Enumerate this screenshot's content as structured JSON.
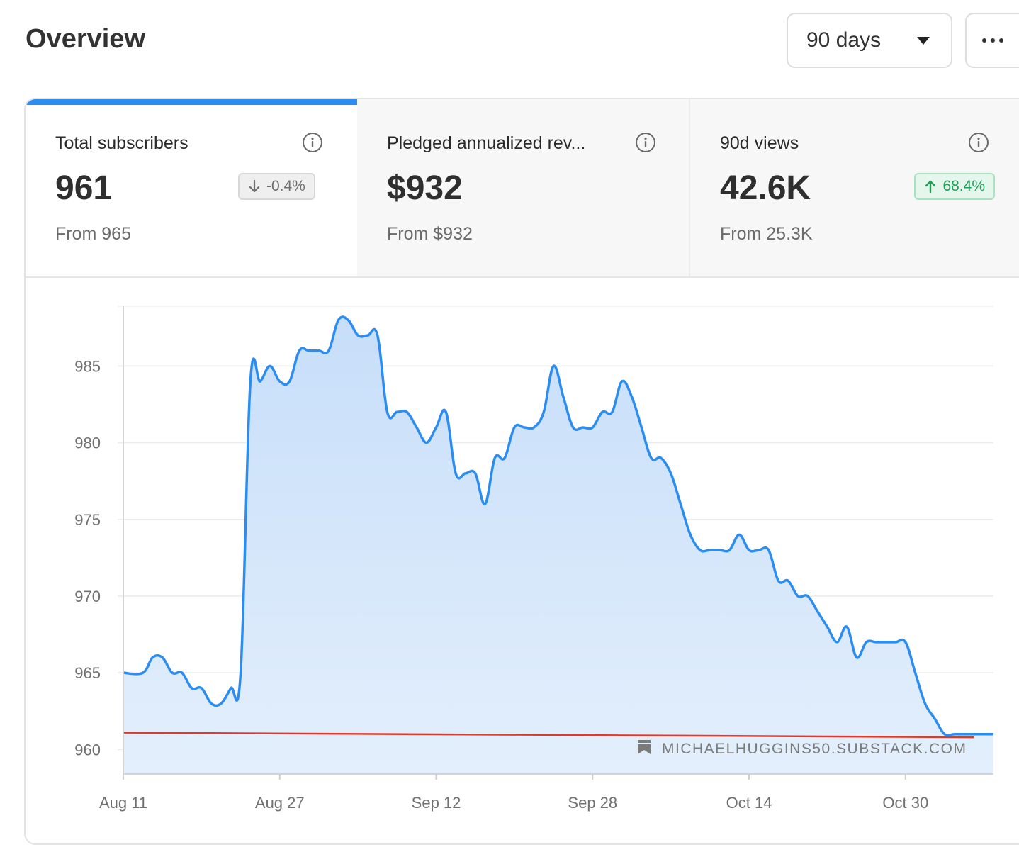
{
  "header": {
    "title": "Overview",
    "range_value": "90 days"
  },
  "stats": [
    {
      "label": "Total subscribers",
      "value": "961",
      "from": "From 965",
      "badge": "-0.4%",
      "trend": "down"
    },
    {
      "label": "Pledged annualized rev...",
      "value": "$932",
      "from": "From $932"
    },
    {
      "label": "90d views",
      "value": "42.6K",
      "from": "From 25.3K",
      "badge": "68.4%",
      "trend": "up"
    }
  ],
  "colors": {
    "accent": "#2b8cf1",
    "line": "#2b8cf1",
    "fill_top": "#c7def9",
    "fill_bottom": "#e3effc",
    "baseline": "#e0392b",
    "up_text": "#1f9e56",
    "down_text": "#6f6f6f"
  },
  "chart_data": {
    "type": "area",
    "title": "",
    "xlabel": "",
    "ylabel": "",
    "ylim": [
      958.4,
      988.9
    ],
    "xlim": [
      0,
      89
    ],
    "yticks": [
      960,
      965,
      970,
      975,
      980,
      985
    ],
    "xticks": [
      {
        "label": "Aug 11",
        "x": 0
      },
      {
        "label": "Aug 27",
        "x": 16
      },
      {
        "label": "Sep 12",
        "x": 32
      },
      {
        "label": "Sep 28",
        "x": 48
      },
      {
        "label": "Oct 14",
        "x": 64
      },
      {
        "label": "Oct 30",
        "x": 80
      }
    ],
    "grid": true,
    "series": [
      {
        "name": "Total subscribers",
        "points": [
          [
            0,
            965
          ],
          [
            2,
            965
          ],
          [
            3,
            966
          ],
          [
            4,
            966
          ],
          [
            5,
            965
          ],
          [
            6,
            965
          ],
          [
            7,
            964
          ],
          [
            8,
            964
          ],
          [
            9,
            963
          ],
          [
            10,
            963
          ],
          [
            11,
            964
          ],
          [
            12,
            965
          ],
          [
            13,
            984
          ],
          [
            14,
            984
          ],
          [
            15,
            985
          ],
          [
            16,
            984
          ],
          [
            17,
            984
          ],
          [
            18,
            986
          ],
          [
            19,
            986
          ],
          [
            20,
            986
          ],
          [
            21,
            986
          ],
          [
            22,
            988
          ],
          [
            23,
            988
          ],
          [
            24,
            987
          ],
          [
            25,
            987
          ],
          [
            26,
            987
          ],
          [
            27,
            982
          ],
          [
            28,
            982
          ],
          [
            29,
            982
          ],
          [
            30,
            981
          ],
          [
            31,
            980
          ],
          [
            32,
            981
          ],
          [
            33,
            982
          ],
          [
            34,
            978
          ],
          [
            35,
            978
          ],
          [
            36,
            978
          ],
          [
            37,
            976
          ],
          [
            38,
            979
          ],
          [
            39,
            979
          ],
          [
            40,
            981
          ],
          [
            41,
            981
          ],
          [
            42,
            981
          ],
          [
            43,
            982
          ],
          [
            44,
            985
          ],
          [
            45,
            983
          ],
          [
            46,
            981
          ],
          [
            47,
            981
          ],
          [
            48,
            981
          ],
          [
            49,
            982
          ],
          [
            50,
            982
          ],
          [
            51,
            984
          ],
          [
            52,
            983
          ],
          [
            53,
            981
          ],
          [
            54,
            979
          ],
          [
            55,
            979
          ],
          [
            56,
            978
          ],
          [
            57,
            976
          ],
          [
            58,
            974
          ],
          [
            59,
            973
          ],
          [
            60,
            973
          ],
          [
            61,
            973
          ],
          [
            62,
            973
          ],
          [
            63,
            974
          ],
          [
            64,
            973
          ],
          [
            65,
            973
          ],
          [
            66,
            973
          ],
          [
            67,
            971
          ],
          [
            68,
            971
          ],
          [
            69,
            970
          ],
          [
            70,
            970
          ],
          [
            71,
            969
          ],
          [
            72,
            968
          ],
          [
            73,
            967
          ],
          [
            74,
            968
          ],
          [
            75,
            966
          ],
          [
            76,
            967
          ],
          [
            77,
            967
          ],
          [
            78,
            967
          ],
          [
            79,
            967
          ],
          [
            80,
            967
          ],
          [
            81,
            965
          ],
          [
            82,
            963
          ],
          [
            83,
            962
          ],
          [
            84,
            961
          ],
          [
            85,
            961
          ],
          [
            86,
            961
          ],
          [
            87,
            961
          ],
          [
            88,
            961
          ],
          [
            89,
            961
          ]
        ]
      },
      {
        "name": "Trend",
        "points": [
          [
            0,
            961.1
          ],
          [
            87,
            960.8
          ]
        ]
      }
    ],
    "watermark": "MICHAELHUGGINS50.SUBSTACK.COM"
  }
}
